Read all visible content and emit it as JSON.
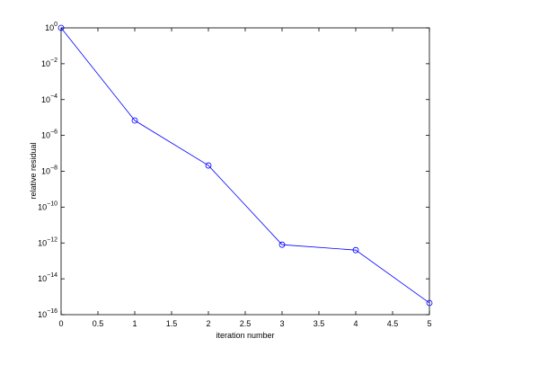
{
  "chart_data": {
    "type": "line",
    "log_y": true,
    "xlabel": "iteration number",
    "ylabel": "relative residual",
    "x": [
      0,
      1,
      2,
      3,
      4,
      5
    ],
    "values": [
      1,
      6.8e-06,
      2.1e-08,
      8e-13,
      4e-13,
      4.5e-16
    ],
    "color": "#0000ff",
    "marker": "circle",
    "xlim": [
      0,
      5
    ],
    "xticks": [
      0,
      0.5,
      1,
      1.5,
      2,
      2.5,
      3,
      3.5,
      4,
      4.5,
      5
    ],
    "ylim": [
      1e-16,
      1
    ],
    "yticks": [
      {
        "value": 1e-16,
        "label": "10^-16"
      },
      {
        "value": 1e-14,
        "label": "10^-14"
      },
      {
        "value": 1e-12,
        "label": "10^-12"
      },
      {
        "value": 1e-10,
        "label": "10^-10"
      },
      {
        "value": 1e-08,
        "label": "10^-8"
      },
      {
        "value": 1e-06,
        "label": "10^-6"
      },
      {
        "value": 0.0001,
        "label": "10^-4"
      },
      {
        "value": 0.01,
        "label": "10^-2"
      },
      {
        "value": 1,
        "label": "10^0"
      }
    ],
    "grid": false
  }
}
